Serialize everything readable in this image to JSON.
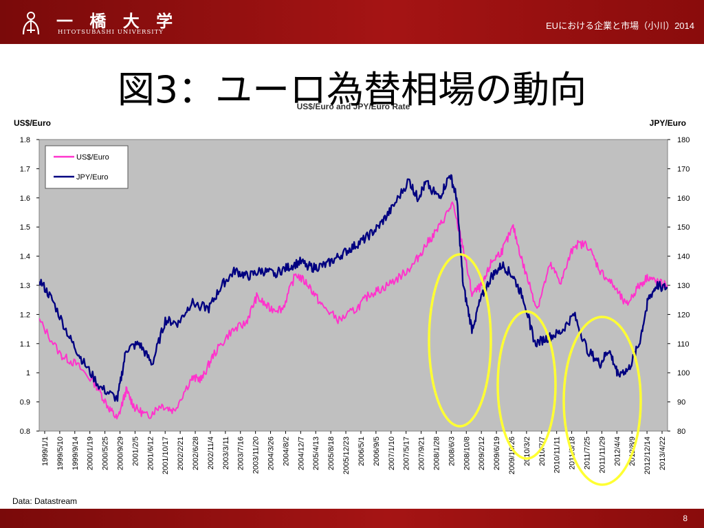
{
  "header": {
    "logo_jp": "一 橋 大 学",
    "logo_en": "HITOTSUBASHI UNIVERSITY",
    "course": "EUにおける企業と市場（小川）2014"
  },
  "slide": {
    "title": "図3：ユーロ為替相場の動向",
    "source": "Data: Datastream",
    "page_number": "8"
  },
  "colors": {
    "us_series": "#ff33cc",
    "jpy_series": "#000080",
    "plot_bg": "#c0c0c0",
    "highlight": "#ffff33",
    "bar": "#a51414"
  },
  "chart_data": {
    "type": "line",
    "title": "US$/Euro and JPY/Euro Rate",
    "ylabel_left": "US$/Euro",
    "ylabel_right": "JPY/Euro",
    "ylim_left": [
      0.8,
      1.8
    ],
    "ylim_right": [
      80,
      180
    ],
    "yticks_left": [
      "0.8",
      "0.9",
      "1",
      "1.1",
      "1.2",
      "1.3",
      "1.4",
      "1.5",
      "1.6",
      "1.7",
      "1.8"
    ],
    "yticks_right": [
      "80",
      "90",
      "100",
      "110",
      "120",
      "130",
      "140",
      "150",
      "160",
      "170",
      "180"
    ],
    "x_tick_labels": [
      "1999/1/1",
      "1999/5/10",
      "1999/9/14",
      "2000/1/19",
      "2000/5/25",
      "2000/9/29",
      "2001/2/5",
      "2001/6/12",
      "2001/10/17",
      "2002/2/21",
      "2002/6/28",
      "2002/11/4",
      "2003/3/11",
      "2003/7/16",
      "2003/11/20",
      "2004/3/26",
      "2004/8/2",
      "2004/12/7",
      "2005/4/13",
      "2005/8/18",
      "2005/12/23",
      "2006/5/1",
      "2006/9/5",
      "2007/1/10",
      "2007/5/17",
      "2007/9/21",
      "2008/1/28",
      "2008/6/3",
      "2008/10/8",
      "2009/2/12",
      "2009/6/19",
      "2009/10/26",
      "2010/3/2",
      "2010/7/7",
      "2010/11/11",
      "2011/3/18",
      "2011/7/25",
      "2011/11/29",
      "2012/4/4",
      "2012/8/9",
      "2012/12/14",
      "2013/4/22"
    ],
    "legend": "top-left",
    "grid": false,
    "series": [
      {
        "name": "US$/Euro",
        "axis": "left",
        "x": [
          1999.0,
          1999.5,
          1999.85,
          2000.3,
          2000.6,
          2000.8,
          2001.0,
          2001.2,
          2001.5,
          2001.8,
          2002.1,
          2002.5,
          2002.75,
          2003.0,
          2003.4,
          2003.75,
          2004.0,
          2004.3,
          2004.6,
          2004.9,
          2005.2,
          2005.5,
          2005.9,
          2006.3,
          2006.6,
          2006.9,
          2007.3,
          2007.6,
          2007.9,
          2008.2,
          2008.5,
          2008.75,
          2008.95,
          2009.2,
          2009.4,
          2009.65,
          2009.9,
          2010.15,
          2010.45,
          2010.75,
          2011.0,
          2011.3,
          2011.6,
          2011.9,
          2012.2,
          2012.5,
          2012.75,
          2013.0,
          2013.2,
          2013.45
        ],
        "y": [
          1.18,
          1.06,
          1.03,
          0.96,
          0.88,
          0.84,
          0.94,
          0.88,
          0.85,
          0.89,
          0.87,
          0.98,
          0.98,
          1.06,
          1.14,
          1.17,
          1.26,
          1.22,
          1.22,
          1.34,
          1.3,
          1.23,
          1.18,
          1.22,
          1.27,
          1.29,
          1.33,
          1.37,
          1.44,
          1.5,
          1.58,
          1.43,
          1.27,
          1.3,
          1.38,
          1.42,
          1.5,
          1.36,
          1.22,
          1.37,
          1.31,
          1.44,
          1.44,
          1.35,
          1.3,
          1.23,
          1.29,
          1.33,
          1.31,
          1.3
        ]
      },
      {
        "name": "JPY/Euro",
        "axis": "right",
        "x": [
          1999.0,
          1999.3,
          1999.7,
          2000.0,
          2000.4,
          2000.8,
          2001.0,
          2001.3,
          2001.6,
          2001.9,
          2002.2,
          2002.5,
          2002.9,
          2003.2,
          2003.5,
          2003.8,
          2004.1,
          2004.4,
          2004.7,
          2005.0,
          2005.3,
          2005.6,
          2005.9,
          2006.2,
          2006.5,
          2006.8,
          2007.1,
          2007.5,
          2007.7,
          2007.9,
          2008.2,
          2008.45,
          2008.6,
          2008.75,
          2008.95,
          2009.15,
          2009.4,
          2009.65,
          2009.9,
          2010.15,
          2010.4,
          2010.7,
          2011.0,
          2011.3,
          2011.6,
          2011.9,
          2012.1,
          2012.3,
          2012.55,
          2012.8,
          2013.0,
          2013.2,
          2013.45
        ],
        "y": [
          132,
          125,
          112,
          104,
          95,
          91,
          108,
          110,
          103,
          118,
          117,
          124,
          122,
          130,
          135,
          133,
          135,
          134,
          136,
          138,
          136,
          137,
          140,
          143,
          146,
          150,
          156,
          166,
          160,
          165,
          160,
          168,
          160,
          130,
          115,
          125,
          133,
          137,
          133,
          125,
          110,
          112,
          114,
          120,
          108,
          103,
          108,
          100,
          101,
          110,
          125,
          130,
          129
        ]
      }
    ]
  }
}
